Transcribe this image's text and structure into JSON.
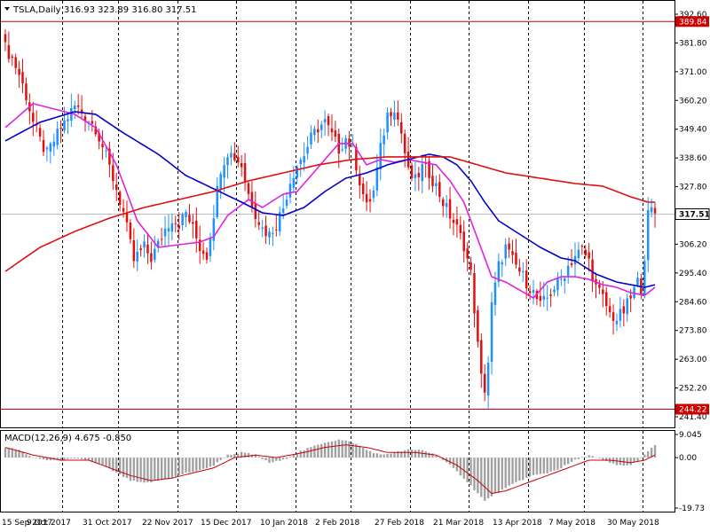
{
  "header": {
    "symbol_timeframe": "TSLA,Daily",
    "ohlc": "316.93 323.89 316.80 317.51",
    "macd_label": "MACD(12,26,9) 4.675 -0.850"
  },
  "colors": {
    "bull": "#1e90ff",
    "bear": "#e01010",
    "ma_short": "#e020e0",
    "ma_mid": "#0000cc",
    "ma_long": "#dd1111",
    "hline": "#cc0000",
    "macd_hist": "#a0a0a0",
    "macd_signal": "#cc0000",
    "grid": "#000000",
    "current_price_line": "#c0c0c0"
  },
  "chart_data": [
    {
      "type": "candlestick",
      "title": "TSLA,Daily",
      "ylim": [
        241.4,
        392.6
      ],
      "y_ticks": [
        "392.60",
        "381.80",
        "371.00",
        "360.20",
        "349.40",
        "338.60",
        "327.80",
        "317.51",
        "306.20",
        "295.40",
        "284.60",
        "273.80",
        "263.00",
        "252.20",
        "241.40"
      ],
      "x_labels": [
        "15 Sep 2017",
        "9 Oct 2017",
        "31 Oct 2017",
        "22 Nov 2017",
        "15 Dec 2017",
        "10 Jan 2018",
        "2 Feb 2018",
        "27 Feb 2018",
        "21 Mar 2018",
        "13 Apr 2018",
        "7 May 2018",
        "30 May 2018"
      ],
      "horizontal_levels": [
        {
          "label": "389.84",
          "value": 389.84
        },
        {
          "label": "244.22",
          "value": 244.22
        }
      ],
      "current_price": {
        "label": "317.51",
        "value": 317.51
      },
      "grid": "vertical-dashed",
      "close_path": [
        [
          0,
          380
        ],
        [
          2,
          376
        ],
        [
          4,
          370
        ],
        [
          6,
          362
        ],
        [
          8,
          352
        ],
        [
          10,
          345
        ],
        [
          12,
          340
        ],
        [
          14,
          345
        ],
        [
          16,
          350
        ],
        [
          18,
          354
        ],
        [
          20,
          358
        ],
        [
          22,
          356
        ],
        [
          24,
          353
        ],
        [
          26,
          350
        ],
        [
          28,
          343
        ],
        [
          30,
          335
        ],
        [
          32,
          327
        ],
        [
          34,
          318
        ],
        [
          36,
          306
        ],
        [
          37,
          300
        ],
        [
          38,
          302
        ],
        [
          40,
          305
        ],
        [
          42,
          301
        ],
        [
          44,
          306
        ],
        [
          46,
          312
        ],
        [
          48,
          316
        ],
        [
          50,
          314
        ],
        [
          52,
          318
        ],
        [
          54,
          312
        ],
        [
          56,
          305
        ],
        [
          58,
          302
        ],
        [
          60,
          318
        ],
        [
          62,
          335
        ],
        [
          64,
          341
        ],
        [
          66,
          339
        ],
        [
          68,
          336
        ],
        [
          70,
          325
        ],
        [
          72,
          318
        ],
        [
          74,
          312
        ],
        [
          76,
          310
        ],
        [
          78,
          314
        ],
        [
          80,
          320
        ],
        [
          82,
          330
        ],
        [
          84,
          336
        ],
        [
          86,
          340
        ],
        [
          88,
          346
        ],
        [
          90,
          350
        ],
        [
          92,
          352
        ],
        [
          94,
          347
        ],
        [
          96,
          342
        ],
        [
          98,
          346
        ],
        [
          100,
          342
        ],
        [
          102,
          330
        ],
        [
          104,
          320
        ],
        [
          106,
          326
        ],
        [
          108,
          342
        ],
        [
          110,
          355
        ],
        [
          112,
          358
        ],
        [
          114,
          348
        ],
        [
          116,
          333
        ],
        [
          118,
          330
        ],
        [
          120,
          335
        ],
        [
          122,
          333
        ],
        [
          124,
          328
        ],
        [
          126,
          322
        ],
        [
          128,
          317
        ],
        [
          130,
          312
        ],
        [
          132,
          306
        ],
        [
          134,
          295
        ],
        [
          135,
          282
        ],
        [
          136,
          268
        ],
        [
          137,
          256
        ],
        [
          138,
          252
        ],
        [
          139,
          262
        ],
        [
          140,
          283
        ],
        [
          142,
          298
        ],
        [
          144,
          305
        ],
        [
          146,
          300
        ],
        [
          148,
          296
        ],
        [
          150,
          292
        ],
        [
          152,
          288
        ],
        [
          154,
          283
        ],
        [
          156,
          286
        ],
        [
          158,
          290
        ],
        [
          160,
          293
        ],
        [
          162,
          298
        ],
        [
          164,
          302
        ],
        [
          166,
          304
        ],
        [
          168,
          300
        ],
        [
          170,
          290
        ],
        [
          172,
          286
        ],
        [
          174,
          280
        ],
        [
          176,
          278
        ],
        [
          178,
          281
        ],
        [
          180,
          286
        ],
        [
          182,
          292
        ],
        [
          183,
          290
        ],
        [
          184,
          302
        ],
        [
          185,
          317
        ],
        [
          186,
          319
        ],
        [
          187,
          318
        ]
      ],
      "series": [
        {
          "name": "",
          "color_key": "ma_short",
          "points": [
            [
              0,
              350
            ],
            [
              8,
              359
            ],
            [
              14,
              357
            ],
            [
              20,
              355
            ],
            [
              26,
              350
            ],
            [
              32,
              336
            ],
            [
              38,
              315
            ],
            [
              44,
              305
            ],
            [
              50,
              306
            ],
            [
              56,
              307
            ],
            [
              60,
              309
            ],
            [
              64,
              317
            ],
            [
              70,
              323
            ],
            [
              74,
              320
            ],
            [
              80,
              325
            ],
            [
              84,
              326
            ],
            [
              88,
              332
            ],
            [
              92,
              338
            ],
            [
              96,
              344
            ],
            [
              100,
              344
            ],
            [
              104,
              336
            ],
            [
              108,
              338
            ],
            [
              112,
              337
            ],
            [
              116,
              338
            ],
            [
              120,
              337
            ],
            [
              124,
              336
            ],
            [
              128,
              330
            ],
            [
              132,
              322
            ],
            [
              136,
              308
            ],
            [
              140,
              294
            ],
            [
              144,
              292
            ],
            [
              148,
              289
            ],
            [
              152,
              286
            ],
            [
              156,
              292
            ],
            [
              160,
              294
            ],
            [
              164,
              294
            ],
            [
              168,
              293
            ],
            [
              172,
              291
            ],
            [
              176,
              290
            ],
            [
              180,
              288
            ],
            [
              184,
              287
            ],
            [
              187,
              290
            ]
          ]
        },
        {
          "name": "",
          "color_key": "ma_mid",
          "points": [
            [
              0,
              345
            ],
            [
              10,
              352
            ],
            [
              20,
              356
            ],
            [
              26,
              355
            ],
            [
              34,
              348
            ],
            [
              44,
              340
            ],
            [
              52,
              332
            ],
            [
              60,
              327
            ],
            [
              68,
              322
            ],
            [
              74,
              318
            ],
            [
              80,
              317
            ],
            [
              86,
              320
            ],
            [
              92,
              326
            ],
            [
              98,
              331
            ],
            [
              104,
              333
            ],
            [
              110,
              336
            ],
            [
              116,
              338
            ],
            [
              122,
              340
            ],
            [
              126,
              339
            ],
            [
              130,
              336
            ],
            [
              134,
              330
            ],
            [
              138,
              322
            ],
            [
              142,
              315
            ],
            [
              148,
              310
            ],
            [
              154,
              305
            ],
            [
              160,
              301
            ],
            [
              164,
              300
            ],
            [
              170,
              295
            ],
            [
              176,
              292
            ],
            [
              180,
              291
            ],
            [
              184,
              290
            ],
            [
              187,
              291
            ]
          ]
        },
        {
          "name": "",
          "color_key": "ma_long",
          "points": [
            [
              0,
              296
            ],
            [
              10,
              305
            ],
            [
              20,
              311
            ],
            [
              30,
              316
            ],
            [
              40,
              320
            ],
            [
              50,
              323
            ],
            [
              60,
              326
            ],
            [
              70,
              330
            ],
            [
              80,
              333
            ],
            [
              90,
              336
            ],
            [
              100,
              338
            ],
            [
              110,
              339
            ],
            [
              120,
              339
            ],
            [
              128,
              339
            ],
            [
              136,
              336
            ],
            [
              144,
              333
            ],
            [
              154,
              331
            ],
            [
              164,
              329
            ],
            [
              172,
              328
            ],
            [
              180,
              324
            ],
            [
              185,
              322
            ],
            [
              187,
              322
            ]
          ]
        }
      ]
    },
    {
      "type": "histogram",
      "title": "MACD(12,26,9) 4.675 -0.850",
      "ylim": [
        -19.73,
        9.045
      ],
      "y_ticks": [
        "9.045",
        "0.00",
        "-19.73"
      ],
      "macd_path": [
        [
          0,
          4
        ],
        [
          4,
          3
        ],
        [
          8,
          0
        ],
        [
          12,
          -1
        ],
        [
          16,
          -1
        ],
        [
          20,
          -0.5
        ],
        [
          24,
          -1
        ],
        [
          28,
          -3
        ],
        [
          32,
          -6
        ],
        [
          36,
          -9
        ],
        [
          40,
          -10
        ],
        [
          44,
          -9
        ],
        [
          48,
          -8
        ],
        [
          52,
          -6
        ],
        [
          56,
          -5
        ],
        [
          60,
          -3
        ],
        [
          64,
          1
        ],
        [
          68,
          2
        ],
        [
          72,
          1
        ],
        [
          76,
          -2
        ],
        [
          80,
          -1
        ],
        [
          84,
          2
        ],
        [
          88,
          4
        ],
        [
          92,
          6
        ],
        [
          96,
          7
        ],
        [
          100,
          6
        ],
        [
          104,
          3
        ],
        [
          108,
          1
        ],
        [
          112,
          2
        ],
        [
          116,
          3
        ],
        [
          120,
          3
        ],
        [
          124,
          1
        ],
        [
          128,
          -3
        ],
        [
          132,
          -8
        ],
        [
          136,
          -14
        ],
        [
          138,
          -17
        ],
        [
          140,
          -15
        ],
        [
          144,
          -12
        ],
        [
          148,
          -9
        ],
        [
          152,
          -7
        ],
        [
          156,
          -6
        ],
        [
          160,
          -4
        ],
        [
          164,
          -1
        ],
        [
          168,
          1
        ],
        [
          172,
          -1
        ],
        [
          176,
          -3
        ],
        [
          180,
          -3
        ],
        [
          184,
          1
        ],
        [
          187,
          5
        ]
      ],
      "signal_path": [
        [
          0,
          4
        ],
        [
          8,
          1
        ],
        [
          16,
          -1
        ],
        [
          24,
          -1
        ],
        [
          30,
          -4
        ],
        [
          36,
          -7
        ],
        [
          42,
          -9
        ],
        [
          48,
          -8
        ],
        [
          54,
          -6
        ],
        [
          60,
          -4
        ],
        [
          66,
          0
        ],
        [
          72,
          1
        ],
        [
          78,
          0
        ],
        [
          86,
          2
        ],
        [
          92,
          4
        ],
        [
          98,
          5
        ],
        [
          104,
          4
        ],
        [
          110,
          2
        ],
        [
          118,
          2
        ],
        [
          124,
          1
        ],
        [
          130,
          -3
        ],
        [
          136,
          -9
        ],
        [
          140,
          -14
        ],
        [
          144,
          -13
        ],
        [
          150,
          -10
        ],
        [
          156,
          -7
        ],
        [
          162,
          -4
        ],
        [
          168,
          -1
        ],
        [
          174,
          -1
        ],
        [
          180,
          -2
        ],
        [
          184,
          -1
        ],
        [
          187,
          1
        ]
      ]
    }
  ]
}
